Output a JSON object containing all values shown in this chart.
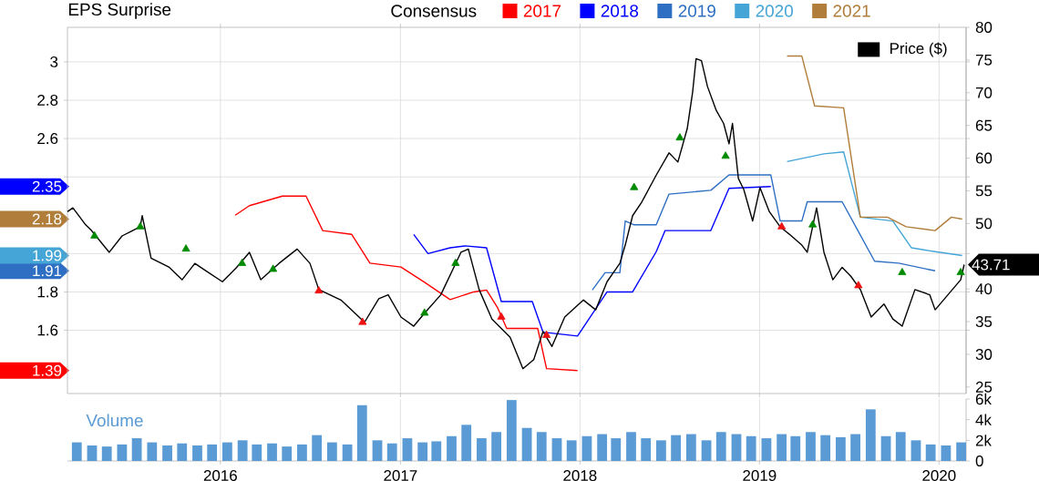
{
  "chart_data": [
    {
      "type": "line",
      "title": "EPS Surprise",
      "legend_title": "Consensus",
      "legend": "top",
      "grid": true,
      "tick_labels": "y",
      "xlim": [
        "2015-02-24",
        "2020-02-25"
      ],
      "xticks": [
        {
          "value": "2016-01-01",
          "label": null
        },
        {
          "value": "2017-01-01",
          "label": null
        },
        {
          "value": "2018-01-01",
          "label": null
        },
        {
          "value": "2019-01-01",
          "label": null
        },
        {
          "value": "2020-01-01",
          "label": null
        }
      ],
      "ylim": [
        1.27,
        3.18
      ],
      "yticks": [
        1.39,
        1.6,
        1.8,
        1.91,
        1.99,
        {
          "value": 2,
          "label": null
        },
        2.18,
        2.35,
        {
          "value": 2.4,
          "label": null
        },
        2.6,
        2.8,
        3
      ],
      "y2lim": [
        24,
        80
      ],
      "y2ticks": [
        25,
        30,
        35,
        40,
        43.71,
        50,
        55,
        60,
        65,
        70,
        75,
        80
      ],
      "series": [
        {
          "name": "2017",
          "color": "#ff0000",
          "x": [
            "2016-01-31",
            "2016-02-29",
            "2016-05-06",
            "2016-06-23",
            "2016-07-27",
            "2016-09-24",
            "2016-10-31",
            "2017-01-02",
            "2017-02-19",
            "2017-04-12",
            "2017-05-30",
            "2017-06-25",
            "2017-07-17",
            "2017-08-05",
            "2017-10-07",
            "2017-10-25",
            "2017-12-27"
          ],
          "values": [
            2.2,
            2.25,
            2.3,
            2.3,
            2.12,
            2.1,
            1.95,
            1.93,
            1.85,
            1.76,
            1.8,
            1.81,
            1.72,
            1.61,
            1.61,
            1.4,
            1.39
          ]
        },
        {
          "name": "2018",
          "color": "#0000ff",
          "x": [
            "2017-01-28",
            "2017-02-26",
            "2017-04-12",
            "2017-05-12",
            "2017-06-25",
            "2017-07-25",
            "2017-09-26",
            "2017-10-18",
            "2017-12-27",
            "2018-02-25",
            "2018-04-18",
            "2018-06-05",
            "2018-06-23",
            "2018-09-24",
            "2018-10-31",
            "2019-01-24"
          ],
          "values": [
            2.1,
            2.0,
            2.03,
            2.04,
            2.03,
            1.75,
            1.75,
            1.59,
            1.57,
            1.8,
            1.8,
            2.01,
            2.12,
            2.12,
            2.34,
            2.35
          ]
        },
        {
          "name": "2019",
          "color": "#2e6fc4",
          "x": [
            "2018-01-26",
            "2018-02-21",
            "2018-03-23",
            "2018-04-03",
            "2018-04-21",
            "2018-06-05",
            "2018-07-01",
            "2018-09-24",
            "2018-10-31",
            "2019-01-24",
            "2019-02-12",
            "2019-03-28",
            "2019-04-08",
            "2019-06-18",
            "2019-08-23",
            "2019-10-11",
            "2019-12-24"
          ],
          "values": [
            1.81,
            1.9,
            1.9,
            2.17,
            2.15,
            2.15,
            2.31,
            2.33,
            2.41,
            2.41,
            2.17,
            2.17,
            2.27,
            2.27,
            1.96,
            1.95,
            1.91
          ]
        },
        {
          "name": "2020",
          "color": "#45a5d6",
          "x": [
            "2019-02-26",
            "2019-05-12",
            "2019-06-21",
            "2019-07-25",
            "2019-09-29",
            "2019-11-06",
            "2019-12-24",
            "2020-02-17"
          ],
          "values": [
            2.48,
            2.52,
            2.53,
            2.19,
            2.17,
            2.03,
            2.01,
            1.99
          ]
        },
        {
          "name": "2021",
          "color": "#b07d3a",
          "x": [
            "2019-02-26",
            "2019-03-28",
            "2019-04-23",
            "2019-06-21",
            "2019-07-25",
            "2019-09-18",
            "2019-10-26",
            "2019-12-24",
            "2020-01-26",
            "2020-02-17"
          ],
          "values": [
            3.03,
            3.03,
            2.77,
            2.76,
            2.19,
            2.19,
            2.14,
            2.12,
            2.19,
            2.18
          ]
        },
        {
          "name": "Price ($)",
          "color": "#000000",
          "axis": "y2",
          "x": [
            "2015-02-24",
            "2015-03-07",
            "2015-03-22",
            "2015-04-02",
            "2015-04-13",
            "2015-05-20",
            "2015-06-15",
            "2015-07-22",
            "2015-07-26",
            "2015-08-13",
            "2015-09-19",
            "2015-10-15",
            "2015-11-10",
            "2015-12-02",
            "2016-01-05",
            "2016-02-03",
            "2016-02-29",
            "2016-03-23",
            "2016-04-29",
            "2016-06-05",
            "2016-07-01",
            "2016-07-19",
            "2016-09-02",
            "2016-10-20",
            "2016-11-18",
            "2016-12-07",
            "2017-01-02",
            "2017-01-28",
            "2017-02-19",
            "2017-03-24",
            "2017-05-04",
            "2017-05-19",
            "2017-06-10",
            "2017-07-06",
            "2017-08-12",
            "2017-09-07",
            "2017-09-29",
            "2017-10-18",
            "2017-11-05",
            "2017-12-01",
            "2018-01-08",
            "2018-02-02",
            "2018-02-25",
            "2018-03-23",
            "2018-04-03",
            "2018-04-18",
            "2018-05-06",
            "2018-06-05",
            "2018-07-01",
            "2018-07-19",
            "2018-08-07",
            "2018-08-18",
            "2018-08-25",
            "2018-09-05",
            "2018-09-17",
            "2018-10-05",
            "2018-10-20",
            "2018-10-31",
            "2018-11-07",
            "2018-11-19",
            "2018-11-30",
            "2018-12-18",
            "2019-01-02",
            "2019-01-21",
            "2019-02-12",
            "2019-03-02",
            "2019-03-28",
            "2019-04-08",
            "2019-04-27",
            "2019-05-12",
            "2019-05-30",
            "2019-06-18",
            "2019-07-06",
            "2019-07-25",
            "2019-08-16",
            "2019-09-11",
            "2019-09-29",
            "2019-10-18",
            "2019-11-13",
            "2019-12-13",
            "2019-12-24",
            "2020-01-19",
            "2020-02-14",
            "2020-02-21"
          ],
          "values": [
            51.8,
            52.4,
            50.9,
            49.8,
            49.0,
            45.6,
            48.1,
            49.5,
            51.2,
            44.7,
            43.3,
            41.4,
            43.9,
            42.8,
            41.1,
            43.3,
            45.6,
            41.4,
            43.9,
            46.1,
            43.9,
            39.9,
            38.3,
            34.9,
            38.5,
            39.1,
            35.7,
            34.3,
            36.3,
            39.1,
            45.6,
            46.1,
            39.9,
            35.4,
            32.6,
            27.8,
            29.2,
            33.5,
            31.2,
            35.7,
            38.3,
            36.8,
            41.1,
            43.9,
            46.7,
            51.2,
            53.2,
            57.4,
            60.8,
            59.4,
            64.5,
            70.1,
            75.2,
            74.9,
            71.0,
            67.3,
            65.3,
            62.2,
            65.3,
            56.9,
            55.2,
            50.4,
            55.5,
            51.8,
            49.5,
            48.4,
            46.7,
            45.6,
            52.4,
            45.6,
            41.4,
            43.3,
            41.9,
            39.9,
            35.7,
            37.7,
            35.4,
            34.3,
            39.9,
            39.1,
            36.8,
            39.1,
            41.4,
            43.71
          ]
        },
        {
          "type": "scatter",
          "color": "#008a00",
          "axis": "y2",
          "marker": "triangle",
          "x": [
            "2015-04-20",
            "2015-07-22",
            "2015-10-23",
            "2016-02-14",
            "2016-04-17",
            "2017-02-19",
            "2017-04-23",
            "2018-04-21",
            "2018-07-23",
            "2018-10-24",
            "2019-04-19",
            "2019-10-18",
            "2020-02-14"
          ],
          "values": [
            48.1,
            49.5,
            46.1,
            43.9,
            43.0,
            36.3,
            43.9,
            55.5,
            63.1,
            60.3,
            49.8,
            42.5,
            42.5
          ]
        },
        {
          "type": "scatter",
          "color": "#ee1111",
          "axis": "y2",
          "marker": "triangle",
          "x": [
            "2016-07-19",
            "2016-10-16",
            "2017-07-25",
            "2017-10-25",
            "2019-02-15",
            "2019-07-21"
          ],
          "values": [
            39.7,
            34.9,
            35.7,
            32.9,
            49.5,
            40.5
          ]
        }
      ]
    },
    {
      "type": "bar",
      "title": "Volume",
      "grid": "x",
      "xlim": [
        "2015-02-24",
        "2020-02-25"
      ],
      "xticks": [
        {
          "value": "2016-01-01",
          "label": "2016"
        },
        {
          "value": "2017-01-01",
          "label": "2017"
        },
        {
          "value": "2018-01-01",
          "label": "2018"
        },
        {
          "value": "2019-01-01",
          "label": "2019"
        },
        {
          "value": "2020-01-01",
          "label": "2020"
        }
      ],
      "y2lim": [
        0,
        6000
      ],
      "y2ticks": [
        0,
        {
          "value": 2000,
          "label": "2k"
        },
        {
          "value": 4000,
          "label": "4k"
        },
        {
          "value": 6000,
          "label": "6k"
        }
      ],
      "x": [
        "2015-03-15",
        "2015-04-15",
        "2015-05-15",
        "2015-06-15",
        "2015-07-15",
        "2015-08-15",
        "2015-09-15",
        "2015-10-15",
        "2015-11-15",
        "2015-12-15",
        "2016-01-15",
        "2016-02-15",
        "2016-03-15",
        "2016-04-15",
        "2016-05-15",
        "2016-06-15",
        "2016-07-15",
        "2016-08-15",
        "2016-09-15",
        "2016-10-15",
        "2016-11-15",
        "2016-12-15",
        "2017-01-15",
        "2017-02-15",
        "2017-03-15",
        "2017-04-15",
        "2017-05-15",
        "2017-06-15",
        "2017-07-15",
        "2017-08-15",
        "2017-09-15",
        "2017-10-15",
        "2017-11-15",
        "2017-12-15",
        "2018-01-15",
        "2018-02-15",
        "2018-03-15",
        "2018-04-15",
        "2018-05-15",
        "2018-06-15",
        "2018-07-15",
        "2018-08-15",
        "2018-09-15",
        "2018-10-15",
        "2018-11-15",
        "2018-12-15",
        "2019-01-15",
        "2019-02-15",
        "2019-03-15",
        "2019-04-15",
        "2019-05-15",
        "2019-06-15",
        "2019-07-15",
        "2019-08-15",
        "2019-09-15",
        "2019-10-15",
        "2019-11-15",
        "2019-12-15",
        "2020-01-15",
        "2020-02-15"
      ],
      "series": [
        {
          "color": "#5b9bd5",
          "axis": "y2",
          "values": [
            1800,
            1500,
            1400,
            1600,
            2200,
            1800,
            1500,
            1700,
            1500,
            1600,
            1800,
            2000,
            1600,
            1700,
            1400,
            1600,
            2500,
            1800,
            1600,
            5400,
            2000,
            1700,
            2200,
            1800,
            1900,
            2400,
            3500,
            2200,
            2800,
            5900,
            3200,
            2800,
            2200,
            2000,
            2400,
            2600,
            2200,
            2800,
            2200,
            2000,
            2500,
            2600,
            2000,
            2800,
            2600,
            2400,
            2200,
            2600,
            2400,
            2800,
            2500,
            2300,
            2600,
            5000,
            2400,
            2800,
            2000,
            1600,
            1500,
            1800
          ]
        }
      ]
    }
  ]
}
